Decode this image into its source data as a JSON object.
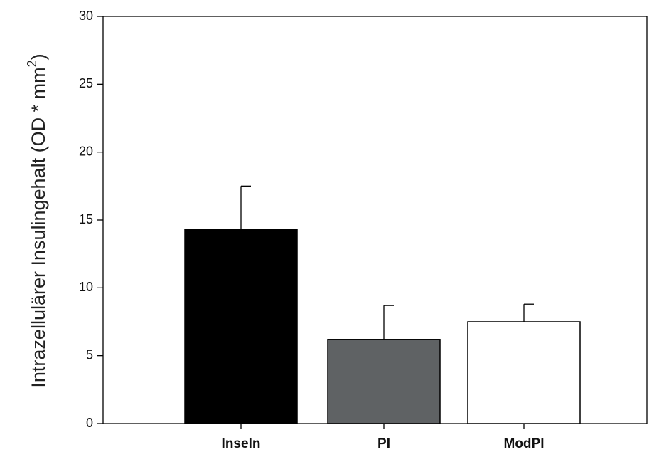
{
  "chart_data": {
    "type": "bar",
    "title": "",
    "xlabel": "",
    "ylabel": "Intrazellulärer Insulingehalt (OD * mm",
    "ylabel_sup": "2",
    "ylabel_suffix": ")",
    "ylim": [
      0,
      30
    ],
    "yticks": [
      0,
      5,
      10,
      15,
      20,
      25,
      30
    ],
    "categories": [
      "Inseln",
      "PI",
      "ModPI"
    ],
    "values": [
      14.3,
      6.2,
      7.5
    ],
    "error_upper": [
      3.2,
      2.5,
      1.3
    ],
    "bar_colors": [
      "#000000",
      "#5f6264",
      "#ffffff"
    ],
    "grid": false,
    "legend": "none"
  }
}
